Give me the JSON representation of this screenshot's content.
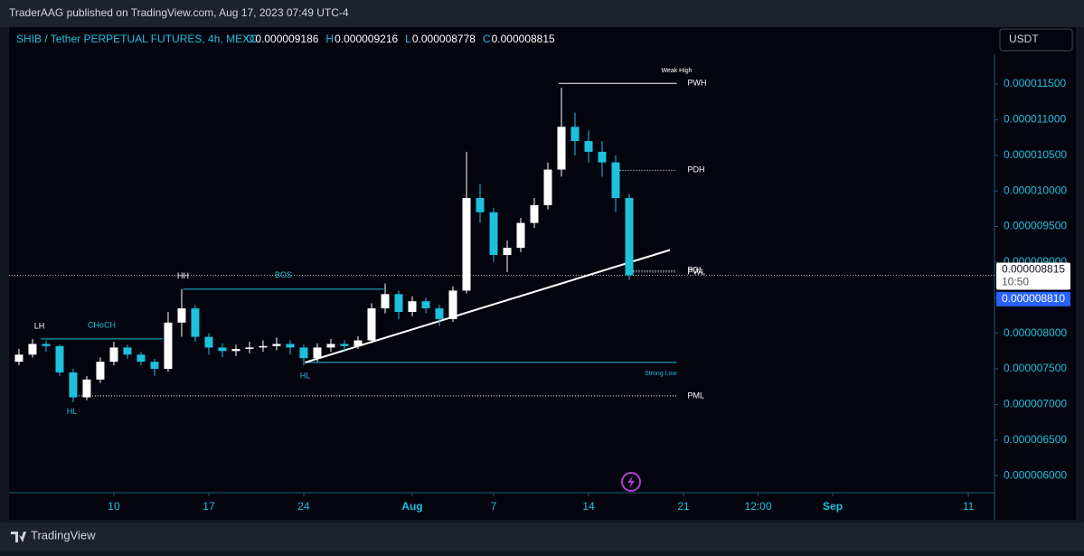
{
  "header": {
    "publisher": "TraderAAG published on TradingView.com, Aug 17, 2023 07:49 UTC-4",
    "symbol": "SHIB / Tether PERPETUAL FUTURES, 4h, MEXC",
    "ohlc": [
      {
        "key": "O",
        "value": "0.000009186"
      },
      {
        "key": "H",
        "value": "0.000009216"
      },
      {
        "key": "L",
        "value": "0.000008778"
      },
      {
        "key": "C",
        "value": "0.000008815"
      }
    ],
    "currency": "USDT"
  },
  "footer": {
    "brand": "TradingView"
  },
  "chart_data": {
    "type": "candlestick",
    "up_color": "#ffffff",
    "down_color": "#1fc0dc",
    "x": [
      2,
      3,
      4,
      5,
      6,
      7,
      8,
      9,
      10,
      11,
      12,
      13,
      14,
      15,
      16,
      17,
      18,
      19,
      20,
      21,
      22,
      23,
      24,
      25,
      26,
      27,
      28,
      29,
      30,
      31,
      32,
      33,
      34,
      35,
      36,
      37,
      38,
      39,
      40,
      41,
      42,
      43,
      44,
      45,
      46,
      47
    ],
    "open": [
      7.6e-06,
      7.7e-06,
      7.85e-06,
      7.82e-06,
      7.45e-06,
      7.1e-06,
      7.35e-06,
      7.6e-06,
      7.8e-06,
      7.7e-06,
      7.6e-06,
      7.5e-06,
      8.15e-06,
      8.35e-06,
      7.95e-06,
      7.8e-06,
      7.75e-06,
      7.78e-06,
      7.8e-06,
      7.82e-06,
      7.85e-06,
      7.8e-06,
      7.65e-06,
      7.8e-06,
      7.85e-06,
      7.82e-06,
      7.9e-06,
      8.35e-06,
      8.55e-06,
      8.3e-06,
      8.45e-06,
      8.35e-06,
      8.2e-06,
      8.6e-06,
      9.9e-06,
      9.7e-06,
      9.1e-06,
      9.2e-06,
      9.55e-06,
      9.8e-06,
      1.03e-05,
      1.09e-05,
      1.07e-05,
      1.055e-05,
      1.04e-05,
      9.9e-06
    ],
    "high": [
      7.78e-06,
      7.92e-06,
      7.9e-06,
      7.84e-06,
      7.5e-06,
      7.4e-06,
      7.66e-06,
      7.88e-06,
      7.84e-06,
      7.74e-06,
      7.64e-06,
      8.3e-06,
      8.62e-06,
      8.4e-06,
      8e-06,
      7.86e-06,
      7.84e-06,
      7.88e-06,
      7.9e-06,
      7.94e-06,
      7.9e-06,
      7.84e-06,
      7.86e-06,
      7.92e-06,
      7.9e-06,
      7.96e-06,
      8.42e-06,
      8.7e-06,
      8.6e-06,
      8.52e-06,
      8.5e-06,
      8.4e-06,
      8.66e-06,
      1.055e-05,
      1.01e-05,
      9.76e-06,
      9.3e-06,
      9.62e-06,
      9.9e-06,
      1.04e-05,
      1.145e-05,
      1.11e-05,
      1.085e-05,
      1.07e-05,
      1.05e-05,
      9.96e-06
    ],
    "low": [
      7.55e-06,
      7.66e-06,
      7.74e-06,
      7.4e-06,
      7.03e-06,
      7.06e-06,
      7.3e-06,
      7.55e-06,
      7.64e-06,
      7.55e-06,
      7.4e-06,
      7.46e-06,
      7.95e-06,
      7.88e-06,
      7.7e-06,
      7.66e-06,
      7.68e-06,
      7.72e-06,
      7.74e-06,
      7.76e-06,
      7.7e-06,
      7.55e-06,
      7.6e-06,
      7.74e-06,
      7.74e-06,
      7.78e-06,
      7.86e-06,
      8.28e-06,
      8.2e-06,
      8.24e-06,
      8.28e-06,
      8.1e-06,
      8.16e-06,
      8.56e-06,
      9.55e-06,
      9e-06,
      8.86e-06,
      9.14e-06,
      9.48e-06,
      9.74e-06,
      1.02e-05,
      1.05e-05,
      1.04e-05,
      1.02e-05,
      9.7e-06,
      8.75e-06
    ],
    "close": [
      7.7e-06,
      7.85e-06,
      7.82e-06,
      7.45e-06,
      7.1e-06,
      7.35e-06,
      7.6e-06,
      7.8e-06,
      7.7e-06,
      7.6e-06,
      7.5e-06,
      8.15e-06,
      8.35e-06,
      7.95e-06,
      7.8e-06,
      7.75e-06,
      7.78e-06,
      7.8e-06,
      7.82e-06,
      7.85e-06,
      7.8e-06,
      7.65e-06,
      7.8e-06,
      7.85e-06,
      7.82e-06,
      7.9e-06,
      8.35e-06,
      8.55e-06,
      8.3e-06,
      8.45e-06,
      8.35e-06,
      8.2e-06,
      8.6e-06,
      9.9e-06,
      9.7e-06,
      9.1e-06,
      9.2e-06,
      9.55e-06,
      9.8e-06,
      1.03e-05,
      1.09e-05,
      1.07e-05,
      1.055e-05,
      1.04e-05,
      9.9e-06,
      8.815e-06
    ],
    "xlim": [
      1.27,
      73.93
    ],
    "xticks": [
      {
        "value": 9,
        "label": "10"
      },
      {
        "value": 16,
        "label": "17"
      },
      {
        "value": 23,
        "label": "24"
      },
      {
        "value": 31,
        "label": "Aug"
      },
      {
        "value": 37,
        "label": "7"
      },
      {
        "value": 44,
        "label": "14"
      },
      {
        "value": 51,
        "label": "21"
      },
      {
        "value": 56.5,
        "label": "12:00"
      },
      {
        "value": 62,
        "label": "Sep"
      },
      {
        "value": 72,
        "label": "11"
      }
    ],
    "ylim": [
      5.76e-06,
      1.192e-05
    ],
    "yticks": [
      {
        "value": 6e-06,
        "label": "0.000006000"
      },
      {
        "value": 6.5e-06,
        "label": "0.000006500"
      },
      {
        "value": 7e-06,
        "label": "0.000007000"
      },
      {
        "value": 7.5e-06,
        "label": "0.000007500"
      },
      {
        "value": 8e-06,
        "label": "0.000008000"
      },
      {
        "value": 8.5e-06,
        "label": "0.000008500"
      },
      {
        "value": 9e-06,
        "label": "0.000009000"
      },
      {
        "value": 9.5e-06,
        "label": "0.000009500"
      },
      {
        "value": 1e-05,
        "label": "0.000010000"
      },
      {
        "value": 1.05e-05,
        "label": "0.000010500"
      },
      {
        "value": 1.1e-05,
        "label": "0.000011000"
      },
      {
        "value": 1.15e-05,
        "label": "0.000011500"
      }
    ],
    "levels": [
      {
        "label": "PWH",
        "value": 1.151e-05,
        "start": 41.8,
        "end": 50.5,
        "style": "solid",
        "color": "#ffffff",
        "label_at": "right"
      },
      {
        "label": "PDH",
        "value": 1.029e-05,
        "start": 45.9,
        "end": 50.5,
        "style": "dotted",
        "color": "#ffffff",
        "label_at": "right"
      },
      {
        "label": "PDL",
        "value": 8.88e-06,
        "start": 47.3,
        "end": 50.5,
        "style": "dotted",
        "color": "#ffffff",
        "label_at": "right"
      },
      {
        "label": "PWL",
        "value": 8.86e-06,
        "start": 47.3,
        "end": 50.5,
        "style": "dotted",
        "color": "#ffffff",
        "label_at": "right"
      },
      {
        "label": "PML",
        "value": 7.12e-06,
        "start": 5.8,
        "end": 50.5,
        "style": "dotted",
        "color": "#ffffff",
        "label_at": "right"
      },
      {
        "label": "CHoCH",
        "value": 7.92e-06,
        "start": 3.6,
        "end": 12.6,
        "style": "solid",
        "color": "#1fc0dc",
        "label_at": "middle"
      },
      {
        "label": "BOS",
        "value": 8.62e-06,
        "start": 14.1,
        "end": 28.9,
        "style": "solid",
        "color": "#1fc0dc",
        "label_at": "middle"
      },
      {
        "label": "Strong Low",
        "value": 7.59e-06,
        "start": 23.1,
        "end": 50.5,
        "style": "solid",
        "color": "#1fc0dc",
        "label_at": "below-end"
      }
    ],
    "points": [
      {
        "text": "LH",
        "x": 3.5,
        "value": 7.92e-06,
        "side": "above",
        "color": "#ffffff"
      },
      {
        "text": "HH",
        "x": 14.1,
        "value": 8.62e-06,
        "side": "above",
        "color": "#ffffff"
      },
      {
        "text": "HL",
        "x": 5.9,
        "value": 7.05e-06,
        "side": "below",
        "color": "#1fc0dc"
      },
      {
        "text": "HL",
        "x": 23.1,
        "value": 7.55e-06,
        "side": "below",
        "color": "#1fc0dc"
      },
      {
        "text": "Weak High",
        "x": 50.5,
        "value": 1.151e-05,
        "side": "above",
        "color": "#ffffff"
      }
    ],
    "trendline": {
      "from": [
        23.1,
        7.59e-06
      ],
      "to": [
        50,
        9.17e-06
      ],
      "color": "#ffffff"
    },
    "last_price": {
      "value": 8.815e-06,
      "label": "0.000008815",
      "countdown": "10:50"
    },
    "bid": {
      "value": 8.81e-06,
      "label": "0.000008810"
    }
  }
}
